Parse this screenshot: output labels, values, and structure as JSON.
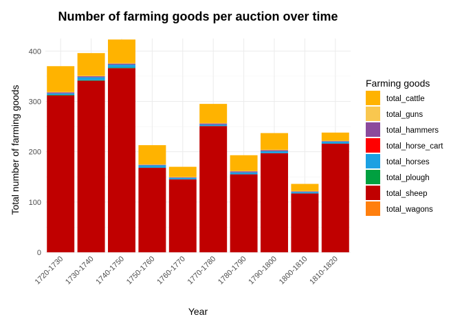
{
  "chart_data": {
    "type": "bar",
    "stacked": true,
    "title": "Number of farming goods per auction over time",
    "xlabel": "Year",
    "ylabel": "Total number of farming goods",
    "ylim": [
      0,
      425
    ],
    "yticks": [
      0,
      100,
      200,
      300,
      400
    ],
    "grid": true,
    "legend": {
      "title": "Farming goods",
      "placement": "right"
    },
    "categories": [
      "1720-1730",
      "1730-1740",
      "1740-1750",
      "1750-1760",
      "1760-1770",
      "1770-1780",
      "1780-1790",
      "1790-1800",
      "1800-1810",
      "1810-1820"
    ],
    "series": [
      {
        "name": "total_sheep",
        "color": "#C00000",
        "values": [
          312,
          341,
          366,
          168,
          145,
          251,
          155,
          197,
          117,
          216
        ]
      },
      {
        "name": "total_plough",
        "color": "#00A040",
        "values": [
          1,
          1,
          1,
          0,
          0,
          0,
          0,
          0,
          0,
          0
        ]
      },
      {
        "name": "total_horses",
        "color": "#1BA1E2",
        "values": [
          3,
          6,
          6,
          5,
          3,
          3,
          4,
          4,
          3,
          4
        ]
      },
      {
        "name": "total_horse_cart",
        "color": "#FF0000",
        "values": [
          0,
          0,
          0,
          0,
          0,
          0,
          0,
          0,
          0,
          0
        ]
      },
      {
        "name": "total_hammers",
        "color": "#8B4A9C",
        "values": [
          2,
          2,
          2,
          1,
          1,
          2,
          2,
          2,
          1,
          1
        ]
      },
      {
        "name": "total_guns",
        "color": "#F9C74F",
        "values": [
          1,
          1,
          1,
          1,
          1,
          1,
          1,
          1,
          1,
          1
        ]
      },
      {
        "name": "total_cattle",
        "color": "#FFB300",
        "values": [
          51,
          45,
          47,
          38,
          20,
          38,
          31,
          33,
          14,
          16
        ]
      },
      {
        "name": "total_wagons",
        "color": "#FF7F0E",
        "values": [
          0,
          0,
          0,
          0,
          0,
          0,
          0,
          0,
          0,
          0
        ]
      }
    ],
    "legend_order": [
      "total_cattle",
      "total_guns",
      "total_hammers",
      "total_horse_cart",
      "total_horses",
      "total_plough",
      "total_sheep",
      "total_wagons"
    ]
  }
}
